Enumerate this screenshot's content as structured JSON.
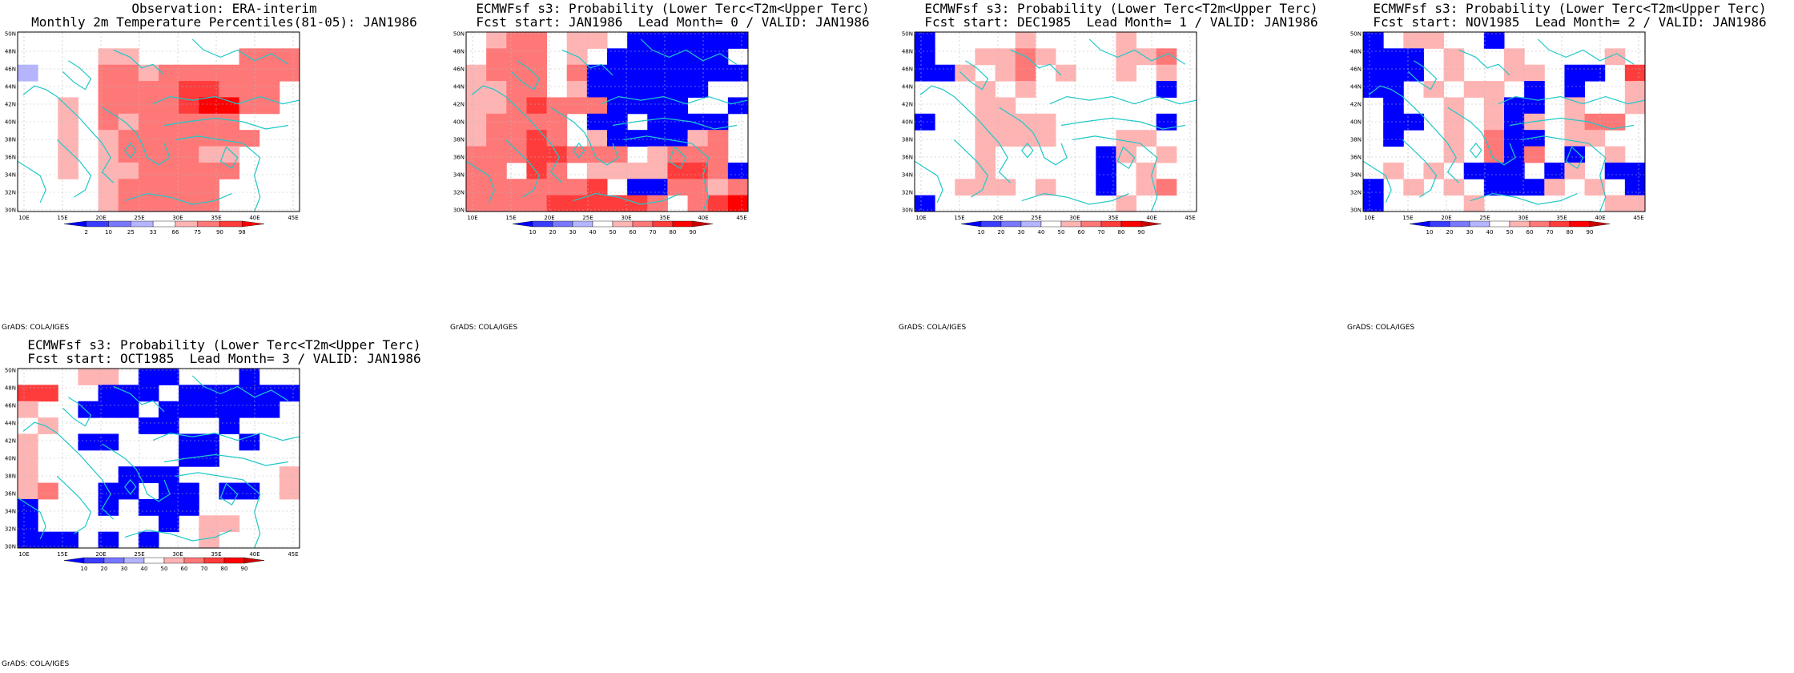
{
  "maps": [
    {
      "title1": "Observation: ERA-interim",
      "title2": "Monthly 2m Temperature Percentiles(81-05): JAN1986",
      "credit": "GrADS: COLA/IGES",
      "lon_labels": [
        "10E",
        "15E",
        "20E",
        "25E",
        "30E",
        "35E",
        "40E",
        "45E"
      ],
      "lat_labels": [
        "30N",
        "32N",
        "34N",
        "36N",
        "38N",
        "40N",
        "42N",
        "44N",
        "46N",
        "48N",
        "50N"
      ],
      "legend_labels": [
        "2",
        "10",
        "25",
        "33",
        "66",
        "75",
        "90",
        "98"
      ],
      "palette": [
        "#0000ff",
        "#3c3cff",
        "#7878ff",
        "#b4b4ff",
        "#ffffff",
        "#ffb4b4",
        "#ff7878",
        "#ff3c3c",
        "#ff0000"
      ],
      "grid": [
        "..........4444",
        "....55.....666",
        "3...6656666666",
        "....666677666.",
        "..5.666678866.",
        "..5.6566666...",
        "..5.56666666..",
        "..5.5666655...",
        "..5.5566666...",
        "....566666....",
        "....566666...."
      ]
    },
    {
      "title1": "ECMWFsf s3: Probability (Lower Terc<T2m<Upper Terc)",
      "title2": "Fcst start: JAN1986  Lead Month= 0 / VALID: JAN1986",
      "credit": "GrADS: COLA/IGES",
      "lon_labels": [
        "10E",
        "15E",
        "20E",
        "25E",
        "30E",
        "35E",
        "40E",
        "45E"
      ],
      "lat_labels": [
        "30N",
        "32N",
        "34N",
        "36N",
        "38N",
        "40N",
        "42N",
        "44N",
        "46N",
        "48N",
        "50N"
      ],
      "legend_labels": [
        "10",
        "20",
        "30",
        "40",
        "50",
        "60",
        "70",
        "80",
        "90"
      ],
      "palette": [
        "#0000ff",
        "#3c3cff",
        "#7878ff",
        "#b4b4ff",
        "#ffffff",
        "#ffb4b4",
        "#ff7878",
        "#ff3c3c",
        "#ff0000",
        "#cc0000"
      ],
      "grid": [
        ".566.55.000000",
        ".666.5.000000.",
        "5666.600000000",
        "5566.5000000..",
        "55676660000..0",
        "56666.00.0000.",
        "56676.5000056.",
        "66677666.5666.",
        "66.76.55557760",
        "6666667.006656",
        "6666777776.678"
      ]
    },
    {
      "title1": "ECMWFsf s3: Probability (Lower Terc<T2m<Upper Terc)",
      "title2": "Fcst start: DEC1985  Lead Month= 1 / VALID: JAN1986",
      "credit": "GrADS: COLA/IGES",
      "lon_labels": [
        "10E",
        "15E",
        "20E",
        "25E",
        "30E",
        "35E",
        "40E",
        "45E"
      ],
      "lat_labels": [
        "30N",
        "32N",
        "34N",
        "36N",
        "38N",
        "40N",
        "42N",
        "44N",
        "46N",
        "48N",
        "50N"
      ],
      "legend_labels": [
        "10",
        "20",
        "30",
        "40",
        "50",
        "60",
        "70",
        "80",
        "90"
      ],
      "palette": [
        "#0000ff",
        "#3c3cff",
        "#7878ff",
        "#b4b4ff",
        "#ffffff",
        "#ffb4b4",
        "#ff7878",
        "#ff3c3c",
        "#ff0000",
        "#cc0000"
      ],
      "grid": [
        "0....5....5...",
        "0..5565...556.",
        "005.56.5..5.5.",
        "...5.5......0.",
        "...55........",
        "0..5555.....0.",
        "...5555...55..",
        "...5.....05.5.",
        "...5.....0.5..",
        "..555.5..0.56.",
        "0.........5..."
      ]
    },
    {
      "title1": "ECMWFsf s3: Probability (Lower Terc<T2m<Upper Terc)",
      "title2": "Fcst start: NOV1985  Lead Month= 2 / VALID: JAN1986",
      "credit": "GrADS: COLA/IGES",
      "lon_labels": [
        "10E",
        "15E",
        "20E",
        "25E",
        "30E",
        "35E",
        "40E",
        "45E"
      ],
      "lat_labels": [
        "30N",
        "32N",
        "34N",
        "36N",
        "38N",
        "40N",
        "42N",
        "44N",
        "46N",
        "48N",
        "50N"
      ],
      "legend_labels": [
        "10",
        "20",
        "30",
        "40",
        "50",
        "60",
        "70",
        "80",
        "90"
      ],
      "palette": [
        "#0000ff",
        "#3c3cff",
        "#7878ff",
        "#b4b4ff",
        "#ffffff",
        "#ffb4b4",
        "#ff7878",
        "#ff3c3c",
        "#ff0000",
        "#cc0000"
      ],
      "grid": [
        "0.55..0.......",
        "000.5..5....5.",
        "000.5..55.00.7",
        "00.5.55.0.0..5",
        ".0..5.500.5..5",
        ".00.5.505.566.",
        ".0..5.600.55..",
        "....5.606.0.5.",
        ".5.5.000.05.00",
        "0.5.5.0005.5.0",
        "0....5......55"
      ]
    },
    {
      "title1": "ECMWFsf s3: Probability (Lower Terc<T2m<Upper Terc)",
      "title2": "Fcst start: OCT1985  Lead Month= 3 / VALID: JAN1986",
      "credit": "GrADS: COLA/IGES",
      "lon_labels": [
        "10E",
        "15E",
        "20E",
        "25E",
        "30E",
        "35E",
        "40E",
        "45E"
      ],
      "lat_labels": [
        "30N",
        "32N",
        "34N",
        "36N",
        "38N",
        "40N",
        "42N",
        "44N",
        "46N",
        "48N",
        "50N"
      ],
      "legend_labels": [
        "10",
        "20",
        "30",
        "40",
        "50",
        "60",
        "70",
        "80",
        "90"
      ],
      "palette": [
        "#0000ff",
        "#3c3cff",
        "#7878ff",
        "#b4b4ff",
        "#ffffff",
        "#ffb4b4",
        "#ff7878",
        "#ff3c3c",
        "#ff0000",
        "#cc0000"
      ],
      "grid": [
        "...55.00...0..",
        "77..000.000000",
        "5..000.000000.",
        ".5....00..0...",
        "5..00...00.0..",
        "5.......00....",
        "5....000.....5",
        "56..00.00.00.5",
        "0...0.000.....",
        "0......0.55...",
        "000.0.0..5...."
      ]
    }
  ]
}
